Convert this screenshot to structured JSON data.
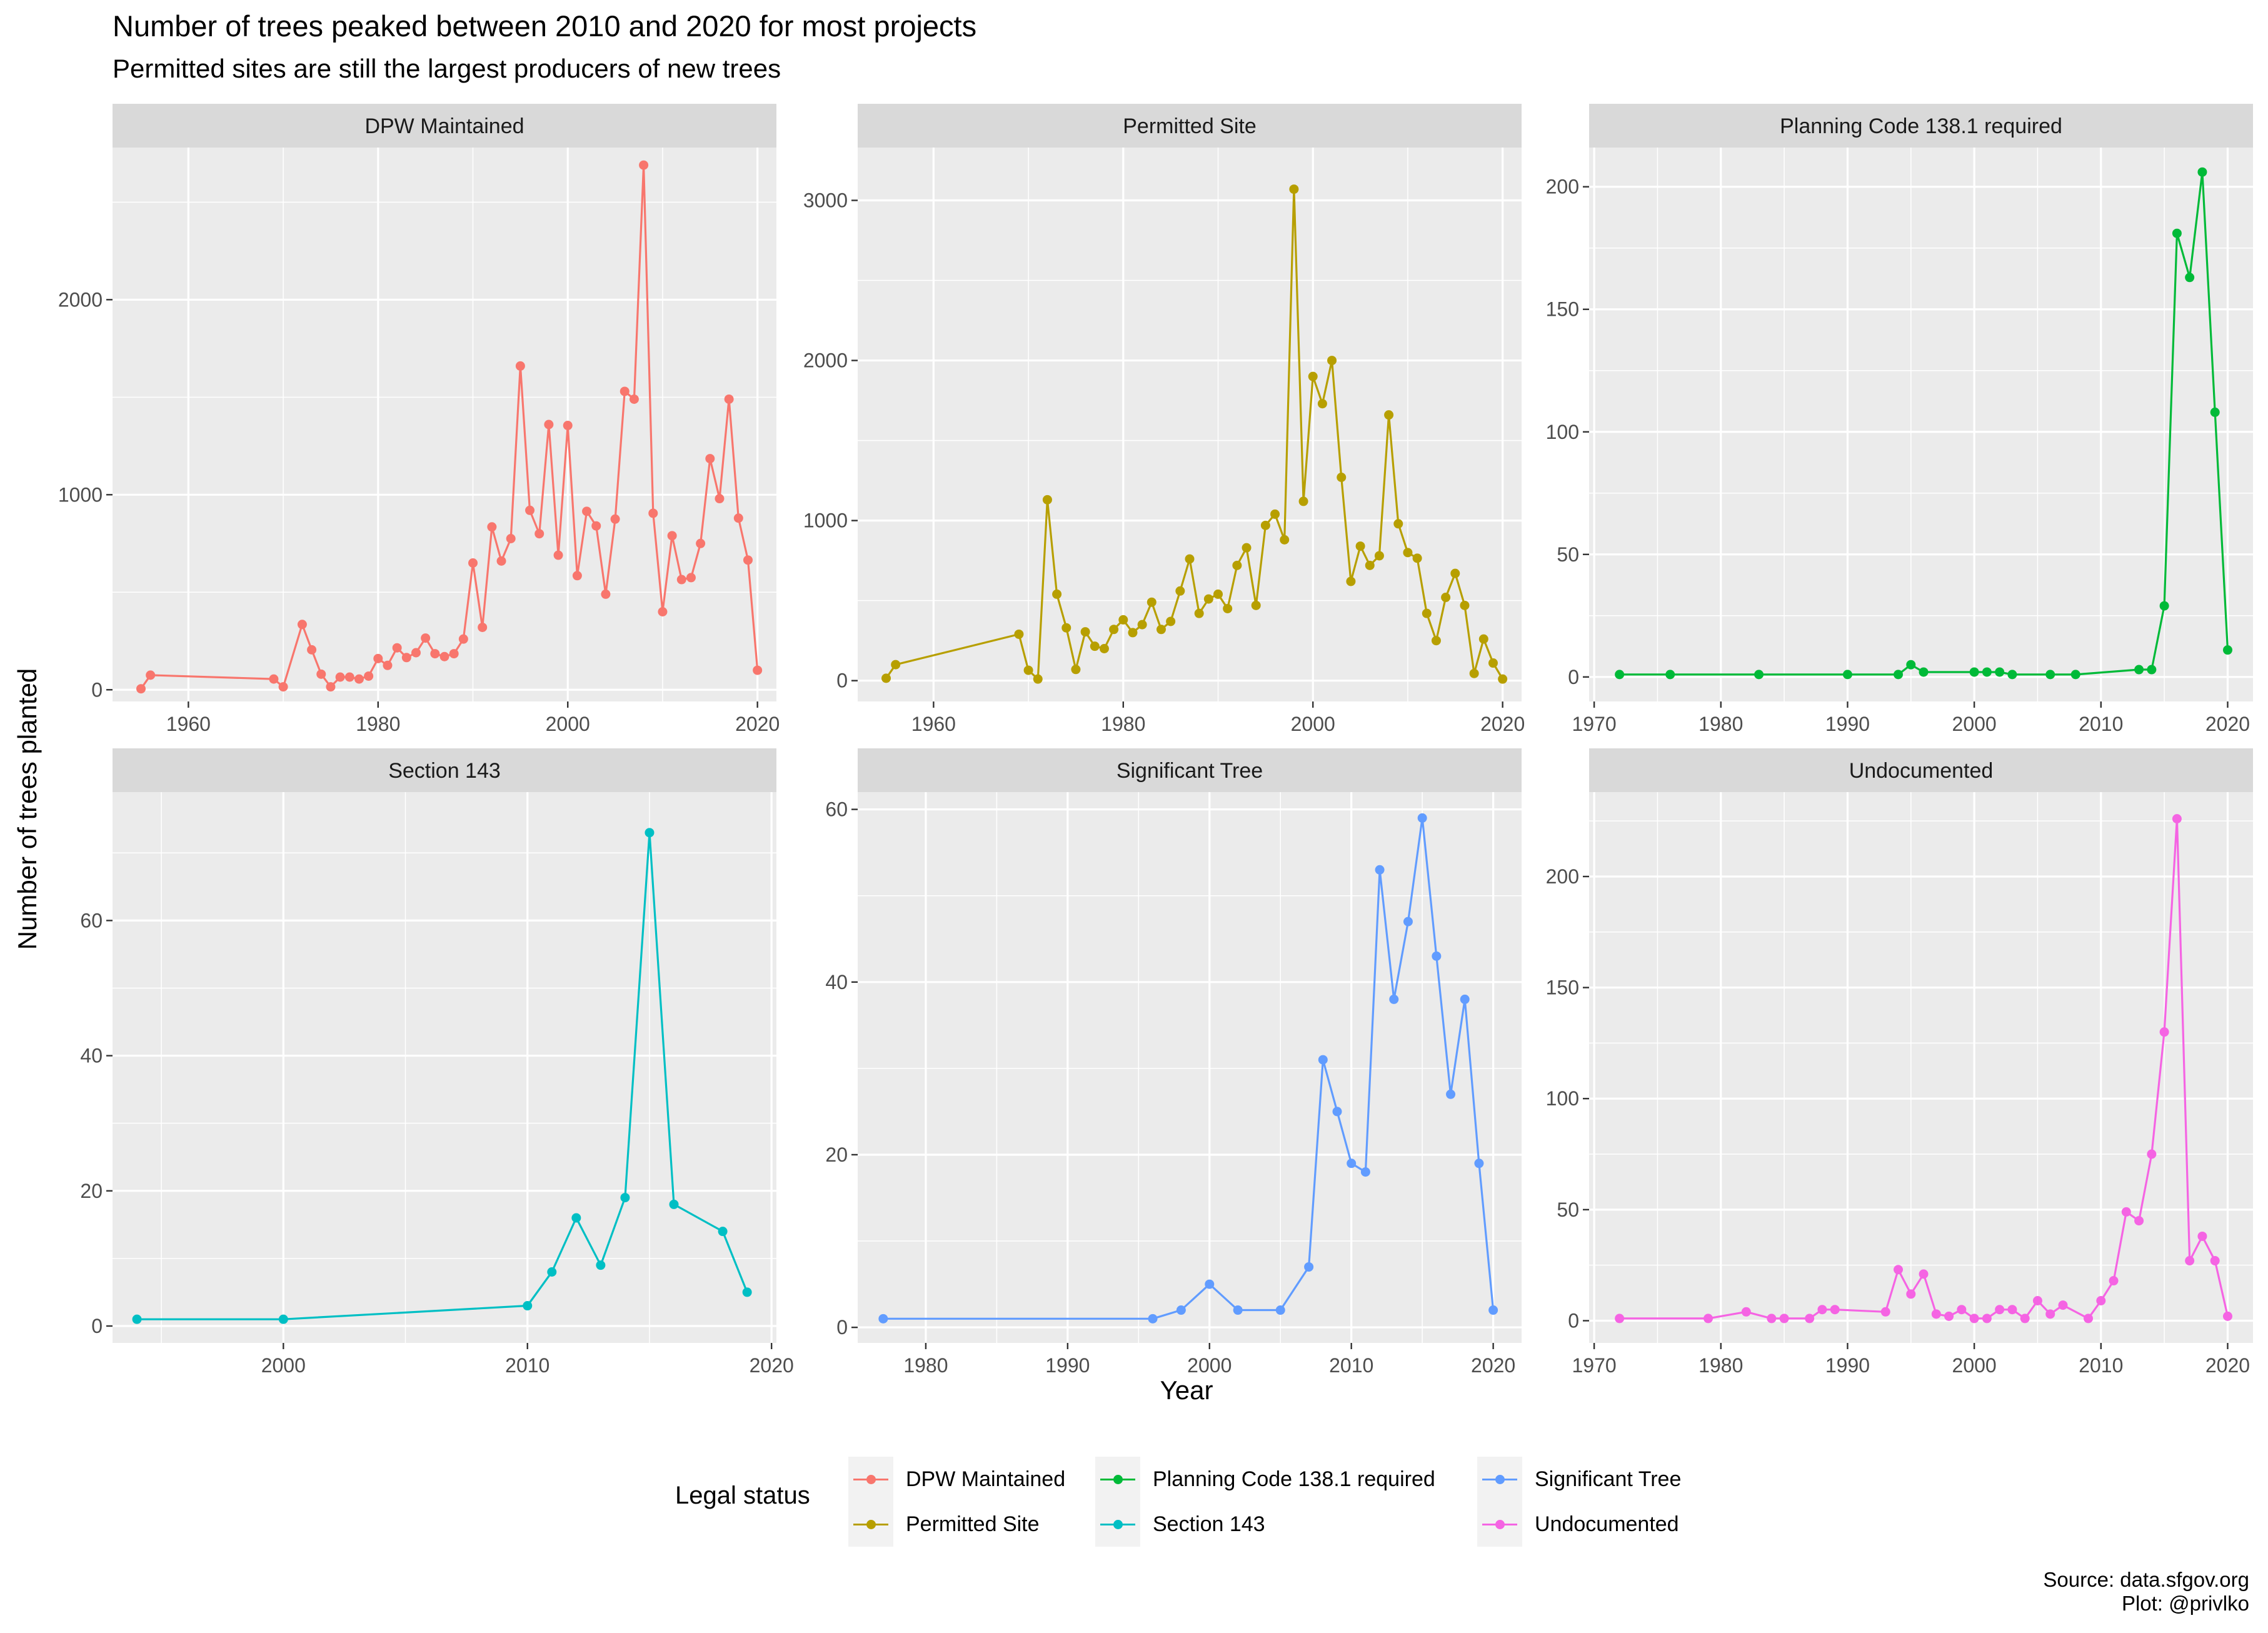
{
  "title": "Number of trees peaked between 2010 and 2020 for most projects",
  "subtitle": "Permitted sites are still the largest producers of new trees",
  "source_line1": "Source: data.sfgov.org",
  "source_line2": "Plot: @privlko",
  "legend_title": "Legal status",
  "chart_data": {
    "type": "line",
    "xlabel": "Year",
    "ylabel": "Number of trees planted",
    "facet_layout": "2 rows x 3 columns, free scales",
    "legend_placement": "bottom",
    "grid": true,
    "series": [
      {
        "name": "DPW Maintained",
        "color": "#F8766D",
        "xlim": [
          1952,
          2022
        ],
        "ylim": [
          -60,
          2780
        ],
        "xticks": [
          1960,
          1980,
          2000,
          2020
        ],
        "yticks": [
          0,
          1000,
          2000
        ],
        "x": [
          1955,
          1956,
          1969,
          1970,
          1972,
          1973,
          1974,
          1975,
          1976,
          1977,
          1978,
          1979,
          1980,
          1981,
          1982,
          1983,
          1984,
          1985,
          1986,
          1987,
          1988,
          1989,
          1990,
          1991,
          1992,
          1993,
          1994,
          1995,
          1996,
          1997,
          1998,
          1999,
          2000,
          2001,
          2002,
          2003,
          2004,
          2005,
          2006,
          2007,
          2008,
          2009,
          2010,
          2011,
          2012,
          2013,
          2014,
          2015,
          2016,
          2017,
          2018,
          2019,
          2020
        ],
        "y": [
          5,
          75,
          55,
          15,
          335,
          205,
          80,
          15,
          65,
          65,
          55,
          70,
          160,
          125,
          215,
          165,
          190,
          265,
          185,
          170,
          185,
          260,
          650,
          320,
          835,
          660,
          775,
          1660,
          920,
          800,
          1360,
          690,
          1355,
          585,
          915,
          840,
          490,
          875,
          1530,
          1490,
          2690,
          905,
          400,
          790,
          565,
          575,
          750,
          1185,
          980,
          1490,
          880,
          665,
          100
        ]
      },
      {
        "name": "Permitted Site",
        "color": "#B79F00",
        "xlim": [
          1952,
          2022
        ],
        "ylim": [
          -130,
          3330
        ],
        "xticks": [
          1960,
          1980,
          2000,
          2020
        ],
        "yticks": [
          0,
          1000,
          2000,
          3000
        ],
        "x": [
          1955,
          1956,
          1969,
          1970,
          1971,
          1972,
          1973,
          1974,
          1975,
          1976,
          1977,
          1978,
          1979,
          1980,
          1981,
          1982,
          1983,
          1984,
          1985,
          1986,
          1987,
          1988,
          1989,
          1990,
          1991,
          1992,
          1993,
          1994,
          1995,
          1996,
          1997,
          1998,
          1999,
          2000,
          2001,
          2002,
          2003,
          2004,
          2005,
          2006,
          2007,
          2008,
          2009,
          2010,
          2011,
          2012,
          2013,
          2014,
          2015,
          2016,
          2017,
          2018,
          2019,
          2020
        ],
        "y": [
          15,
          100,
          290,
          65,
          10,
          1130,
          540,
          330,
          70,
          305,
          215,
          200,
          320,
          380,
          300,
          350,
          490,
          320,
          370,
          560,
          760,
          420,
          510,
          540,
          450,
          720,
          830,
          470,
          970,
          1040,
          880,
          3070,
          1120,
          1900,
          1730,
          2000,
          1270,
          620,
          840,
          720,
          780,
          1660,
          980,
          800,
          765,
          420,
          250,
          520,
          670,
          470,
          45,
          260,
          110,
          10
        ]
      },
      {
        "name": "Planning Code 138.1 required",
        "color": "#00BA38",
        "xlim": [
          1969.6,
          2022
        ],
        "ylim": [
          -10,
          216
        ],
        "xticks": [
          1970,
          1980,
          1990,
          2000,
          2010,
          2020
        ],
        "yticks": [
          0,
          50,
          100,
          150,
          200
        ],
        "x": [
          1972,
          1976,
          1983,
          1990,
          1994,
          1995,
          1996,
          2000,
          2001,
          2002,
          2003,
          2006,
          2008,
          2013,
          2014,
          2015,
          2016,
          2017,
          2018,
          2019,
          2020
        ],
        "y": [
          1,
          1,
          1,
          1,
          1,
          5,
          2,
          2,
          2,
          2,
          1,
          1,
          1,
          3,
          3,
          29,
          181,
          163,
          206,
          108,
          11
        ]
      },
      {
        "name": "Section 143",
        "color": "#00BFC4",
        "xlim": [
          1993,
          2020.2
        ],
        "ylim": [
          -2.5,
          79
        ],
        "xticks": [
          2000,
          2010,
          2020
        ],
        "yticks": [
          0,
          20,
          40,
          60
        ],
        "x": [
          1994,
          2000,
          2010,
          2011,
          2012,
          2013,
          2014,
          2015,
          2016,
          2018,
          2019
        ],
        "y": [
          1,
          1,
          3,
          8,
          16,
          9,
          19,
          73,
          18,
          14,
          5
        ]
      },
      {
        "name": "Significant Tree",
        "color": "#619CFF",
        "xlim": [
          1975.2,
          2022
        ],
        "ylim": [
          -1.8,
          62
        ],
        "xticks": [
          1980,
          1990,
          2000,
          2010,
          2020
        ],
        "yticks": [
          0,
          20,
          40,
          60
        ],
        "x": [
          1977,
          1996,
          1998,
          2000,
          2002,
          2005,
          2007,
          2008,
          2009,
          2010,
          2011,
          2012,
          2013,
          2014,
          2015,
          2016,
          2017,
          2018,
          2019,
          2020
        ],
        "y": [
          1,
          1,
          2,
          5,
          2,
          2,
          7,
          31,
          25,
          19,
          18,
          53,
          38,
          47,
          59,
          43,
          27,
          38,
          19,
          2
        ]
      },
      {
        "name": "Undocumented",
        "color": "#F564E3",
        "xlim": [
          1969.6,
          2022
        ],
        "ylim": [
          -10,
          238
        ],
        "xticks": [
          1970,
          1980,
          1990,
          2000,
          2010,
          2020
        ],
        "yticks": [
          0,
          50,
          100,
          150,
          200
        ],
        "x": [
          1972,
          1979,
          1982,
          1984,
          1985,
          1987,
          1988,
          1989,
          1993,
          1994,
          1995,
          1996,
          1997,
          1998,
          1999,
          2000,
          2001,
          2002,
          2003,
          2004,
          2005,
          2006,
          2007,
          2009,
          2010,
          2011,
          2012,
          2013,
          2014,
          2015,
          2016,
          2017,
          2018,
          2019,
          2020
        ],
        "y": [
          1,
          1,
          4,
          1,
          1,
          1,
          5,
          5,
          4,
          23,
          12,
          21,
          3,
          2,
          5,
          1,
          1,
          5,
          5,
          1,
          9,
          3,
          7,
          1,
          9,
          18,
          49,
          45,
          75,
          130,
          226,
          27,
          38,
          27,
          2
        ]
      }
    ]
  }
}
